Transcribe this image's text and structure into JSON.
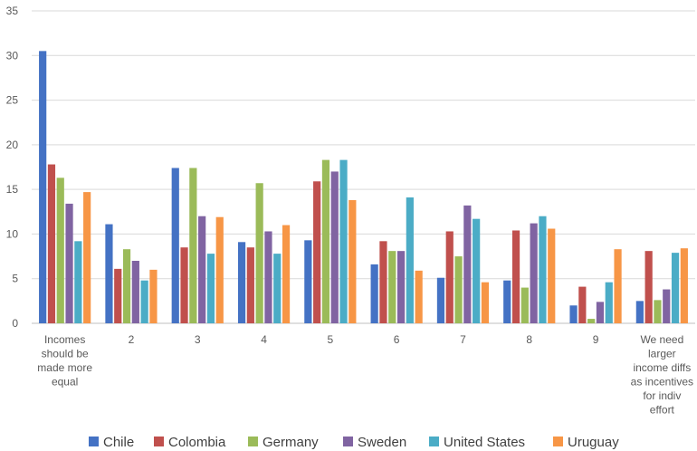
{
  "chart_data": {
    "type": "bar",
    "title": "",
    "xlabel": "",
    "ylabel": "",
    "ylim": [
      0,
      35
    ],
    "yticks": [
      0,
      5,
      10,
      15,
      20,
      25,
      30,
      35
    ],
    "grid": true,
    "legend_position": "bottom",
    "categories": [
      [
        "Incomes",
        "should be",
        "made more",
        "equal"
      ],
      [
        "2"
      ],
      [
        "3"
      ],
      [
        "4"
      ],
      [
        "5"
      ],
      [
        "6"
      ],
      [
        "7"
      ],
      [
        "8"
      ],
      [
        "9"
      ],
      [
        "We need",
        "larger",
        "income diffs",
        "as incentives",
        "for indiv",
        "effort"
      ]
    ],
    "series": [
      {
        "name": "Chile",
        "color": "#4472C4",
        "values": [
          30.5,
          11.1,
          17.4,
          9.1,
          9.3,
          6.6,
          5.1,
          4.8,
          2.0,
          2.5
        ]
      },
      {
        "name": "Colombia",
        "color": "#C0504D",
        "values": [
          17.8,
          6.1,
          8.5,
          8.5,
          15.9,
          9.2,
          10.3,
          10.4,
          4.1,
          8.1
        ]
      },
      {
        "name": "Germany",
        "color": "#9BBB59",
        "values": [
          16.3,
          8.3,
          17.4,
          15.7,
          18.3,
          8.1,
          7.5,
          4.0,
          0.5,
          2.6
        ]
      },
      {
        "name": "Sweden",
        "color": "#8064A2",
        "values": [
          13.4,
          7.0,
          12.0,
          10.3,
          17.0,
          8.1,
          13.2,
          11.2,
          2.4,
          3.8
        ]
      },
      {
        "name": "United States",
        "color": "#4BACC6",
        "values": [
          9.2,
          4.8,
          7.8,
          7.8,
          18.3,
          14.1,
          11.7,
          12.0,
          4.6,
          7.9
        ]
      },
      {
        "name": "Uruguay",
        "color": "#F79646",
        "values": [
          14.7,
          6.0,
          11.9,
          11.0,
          13.8,
          5.9,
          4.6,
          10.6,
          8.3,
          8.4
        ]
      }
    ]
  }
}
